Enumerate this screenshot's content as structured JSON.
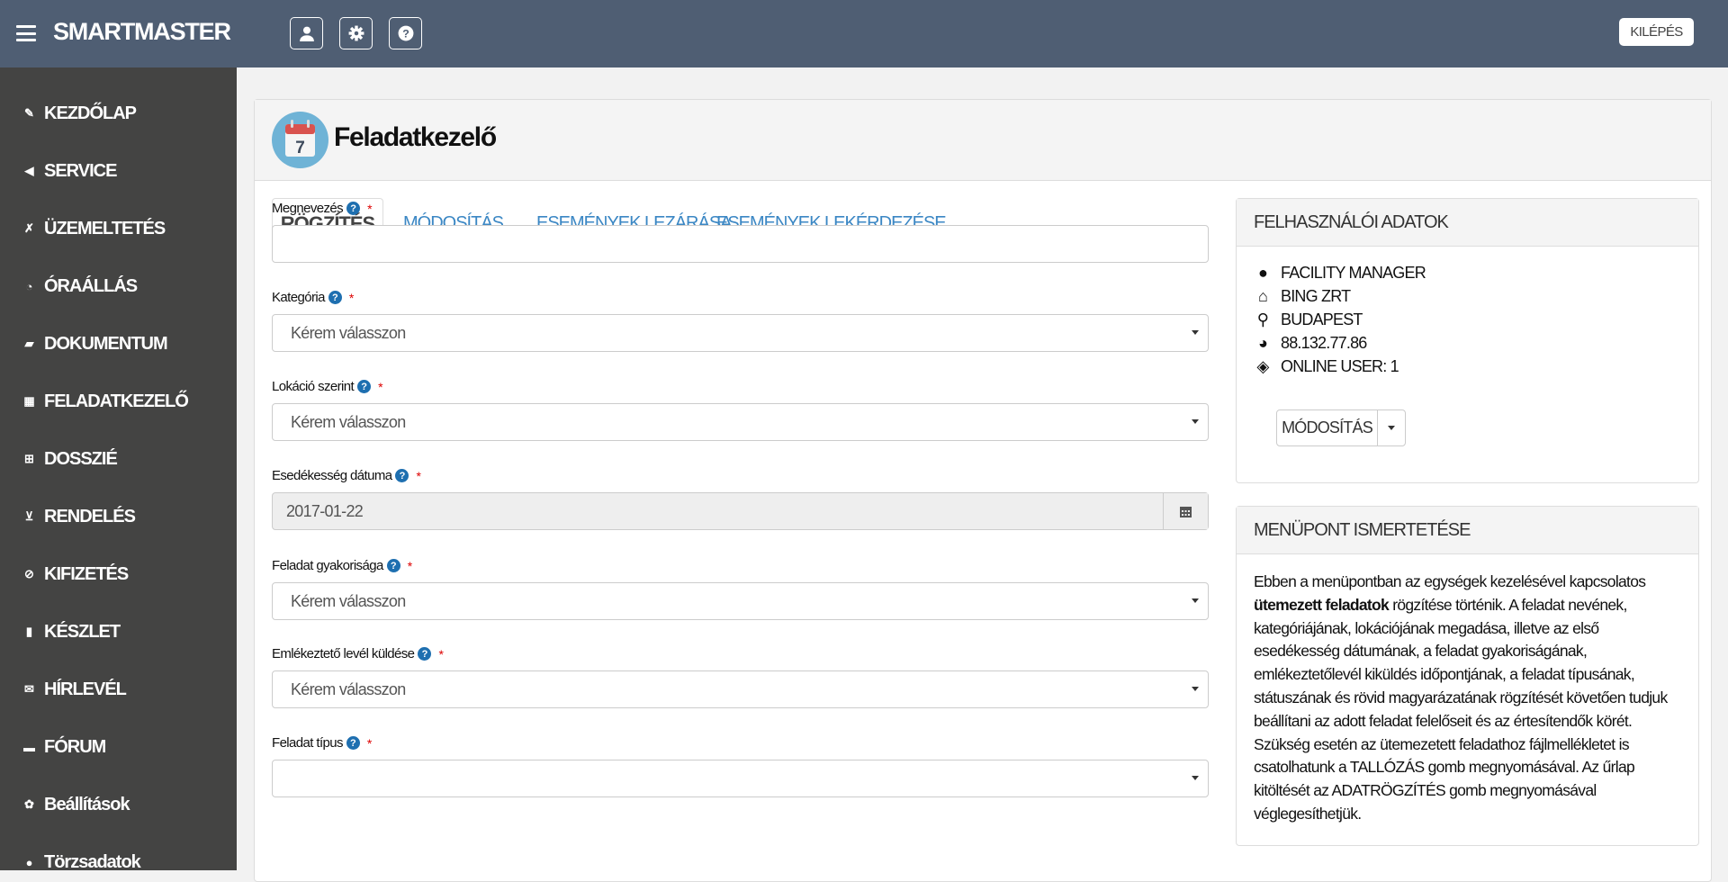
{
  "header": {
    "brand": "SMARTMASTER",
    "icons": [
      "user-icon",
      "gear-icon",
      "help-icon"
    ],
    "logout_label": "KILÉPÉS",
    "bg_color": "#4f5e73"
  },
  "sidebar": {
    "items": [
      {
        "label": "KEZDŐLAP",
        "icon": "edit-icon"
      },
      {
        "label": "SERVICE",
        "icon": "megaphone-icon"
      },
      {
        "label": "ÜZEMELTETÉS",
        "icon": "wrench-icon"
      },
      {
        "label": "ÓRAÁLLÁS",
        "icon": "gauge-icon"
      },
      {
        "label": "DOKUMENTUM",
        "icon": "folder-open-icon"
      },
      {
        "label": "FELADATKEZELŐ",
        "icon": "calendar-icon"
      },
      {
        "label": "DOSSZIÉ",
        "icon": "grid-icon"
      },
      {
        "label": "RENDELÉS",
        "icon": "cart-icon"
      },
      {
        "label": "KIFIZETÉS",
        "icon": "check-circle-icon"
      },
      {
        "label": "KÉSZLET",
        "icon": "bar-chart-icon"
      },
      {
        "label": "HÍRLEVÉL",
        "icon": "envelope-icon"
      },
      {
        "label": "FÓRUM",
        "icon": "comment-icon"
      },
      {
        "label": "Beállítások",
        "icon": "gear-icon"
      },
      {
        "label": "Törzsadatok",
        "icon": "user-icon"
      }
    ]
  },
  "page": {
    "title": "Feladatkezelő",
    "icon_day": "7"
  },
  "tabs": [
    {
      "label": "RÖGZÍTÉS",
      "active": true
    },
    {
      "label": "MÓDOSÍTÁS"
    },
    {
      "label": "ESEMÉNYEK LEZÁRÁSA"
    },
    {
      "label": "ESEMÉNYEK LEKÉRDEZÉSE"
    }
  ],
  "form": {
    "required_mark": "*",
    "help_glyph": "?",
    "fields": [
      {
        "label": "Megnevezés",
        "value": ""
      },
      {
        "label": "Kategória",
        "value": "Kérem válasszon"
      },
      {
        "label": "Lokáció szerint",
        "value": "Kérem válasszon"
      },
      {
        "label": "Esedékesség dátuma",
        "value": "2017-01-22"
      },
      {
        "label": "Feladat gyakorisága",
        "value": "Kérem válasszon"
      },
      {
        "label": "Emlékeztető levél küldése",
        "value": "Kérem válasszon"
      },
      {
        "label": "Feladat típus",
        "value": ""
      }
    ]
  },
  "user_panel": {
    "title": "FELHASZNÁLÓI ADATOK",
    "items": [
      {
        "icon": "user-icon",
        "text": "FACILITY MANAGER"
      },
      {
        "icon": "home-icon",
        "text": "BING ZRT"
      },
      {
        "icon": "map-marker-icon",
        "text": "BUDAPEST"
      },
      {
        "icon": "globe-icon",
        "text": "88.132.77.86"
      },
      {
        "icon": "tags-icon",
        "text": "ONLINE USER: 1"
      }
    ],
    "button_label": "MÓDOSÍTÁS"
  },
  "desc_panel": {
    "title": "MENÜPONT ISMERTETÉSE",
    "bold": "ütemezett feladatok",
    "before": "Ebben a menüpontban az egységek kezelésével kapcsolatos ",
    "after": " rögzítése történik. A feladat nevének, kategóriájának, lokációjának megadása, illetve az első esedékesség dátumának, a feladat gyakoriságának, emlékeztetőlevél kiküldés időpontjának, a feladat típusának, státuszának és rövid magyarázatának rögzítését követően tudjuk beállítani az adott feladat felelőseit és az értesítendők körét. Szükség esetén az ütemezetett feladathoz fájlmellékletet is csatolhatunk a TALLÓZÁS gomb megnyomásával. Az űrlap kitöltését az ADATRÖGZÍTÉS gomb megnyomásával véglegesíthetjük."
  }
}
